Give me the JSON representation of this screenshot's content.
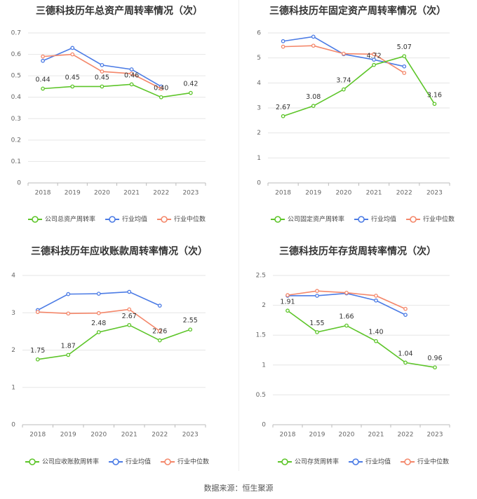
{
  "source_text": "数据来源：恒生聚源",
  "colors": {
    "company": "#5dc529",
    "industry_avg": "#4b7be5",
    "industry_median": "#f4876a",
    "grid": "#e6e6e6",
    "axis": "#bbbbbb"
  },
  "chart_data": [
    {
      "type": "line",
      "title": "三德科技历年总资产周转率情况（次）",
      "categories": [
        "2018",
        "2019",
        "2020",
        "2021",
        "2022",
        "2023"
      ],
      "yticks": [
        "0",
        "0.1",
        "0.2",
        "0.3",
        "0.4",
        "0.5",
        "0.6",
        "0.7"
      ],
      "ylim": [
        0,
        0.7
      ],
      "series": [
        {
          "name": "公司总资产周转率",
          "key": "company",
          "values": [
            0.44,
            0.45,
            0.45,
            0.46,
            0.4,
            0.42
          ],
          "labels": [
            "0.44",
            "0.45",
            "0.45",
            "0.46",
            "0.40",
            "0.42"
          ]
        },
        {
          "name": "行业均值",
          "key": "industry_avg",
          "values": [
            0.57,
            0.63,
            0.55,
            0.53,
            0.45,
            null
          ]
        },
        {
          "name": "行业中位数",
          "key": "industry_median",
          "values": [
            0.59,
            0.6,
            0.52,
            0.51,
            0.44,
            null
          ]
        }
      ]
    },
    {
      "type": "line",
      "title": "三德科技历年固定资产周转率情况（次）",
      "categories": [
        "2018",
        "2019",
        "2020",
        "2021",
        "2022",
        "2023"
      ],
      "yticks": [
        "0",
        "1",
        "2",
        "3",
        "4",
        "5",
        "6"
      ],
      "ylim": [
        0,
        6
      ],
      "series": [
        {
          "name": "公司固定资产周转率",
          "key": "company",
          "values": [
            2.67,
            3.08,
            3.74,
            4.72,
            5.07,
            3.16
          ],
          "labels": [
            "2.67",
            "3.08",
            "3.74",
            "4.72",
            "5.07",
            "3.16"
          ]
        },
        {
          "name": "行业均值",
          "key": "industry_avg",
          "values": [
            5.67,
            5.85,
            5.15,
            4.93,
            4.66,
            null
          ]
        },
        {
          "name": "行业中位数",
          "key": "industry_median",
          "values": [
            5.45,
            5.49,
            5.17,
            5.15,
            4.4,
            null
          ]
        }
      ]
    },
    {
      "type": "line",
      "title": "三德科技历年应收账款周转率情况（次）",
      "categories": [
        "2018",
        "2019",
        "2020",
        "2021",
        "2022",
        "2023"
      ],
      "yticks": [
        "0",
        "1",
        "2",
        "3",
        "4"
      ],
      "ylim": [
        0,
        4
      ],
      "series": [
        {
          "name": "公司应收账款周转率",
          "key": "company",
          "values": [
            1.75,
            1.87,
            2.48,
            2.67,
            2.26,
            2.55
          ],
          "labels": [
            "1.75",
            "1.87",
            "2.48",
            "2.67",
            "2.26",
            "2.55"
          ]
        },
        {
          "name": "行业均值",
          "key": "industry_avg",
          "values": [
            3.07,
            3.5,
            3.51,
            3.56,
            3.19,
            null
          ]
        },
        {
          "name": "行业中位数",
          "key": "industry_median",
          "values": [
            3.02,
            2.98,
            2.99,
            3.09,
            2.51,
            null
          ]
        }
      ]
    },
    {
      "type": "line",
      "title": "三德科技历年存货周转率情况（次）",
      "categories": [
        "2018",
        "2019",
        "2020",
        "2021",
        "2022",
        "2023"
      ],
      "yticks": [
        "0",
        "0.5",
        "1",
        "1.5",
        "2",
        "2.5"
      ],
      "ylim": [
        0,
        2.5
      ],
      "series": [
        {
          "name": "公司存货周转率",
          "key": "company",
          "values": [
            1.91,
            1.55,
            1.66,
            1.4,
            1.04,
            0.96
          ],
          "labels": [
            "1.91",
            "1.55",
            "1.66",
            "1.40",
            "1.04",
            "0.96"
          ]
        },
        {
          "name": "行业均值",
          "key": "industry_avg",
          "values": [
            2.16,
            2.16,
            2.2,
            2.08,
            1.84,
            null
          ]
        },
        {
          "name": "行业中位数",
          "key": "industry_median",
          "values": [
            2.17,
            2.24,
            2.21,
            2.16,
            1.94,
            null
          ]
        }
      ]
    }
  ]
}
